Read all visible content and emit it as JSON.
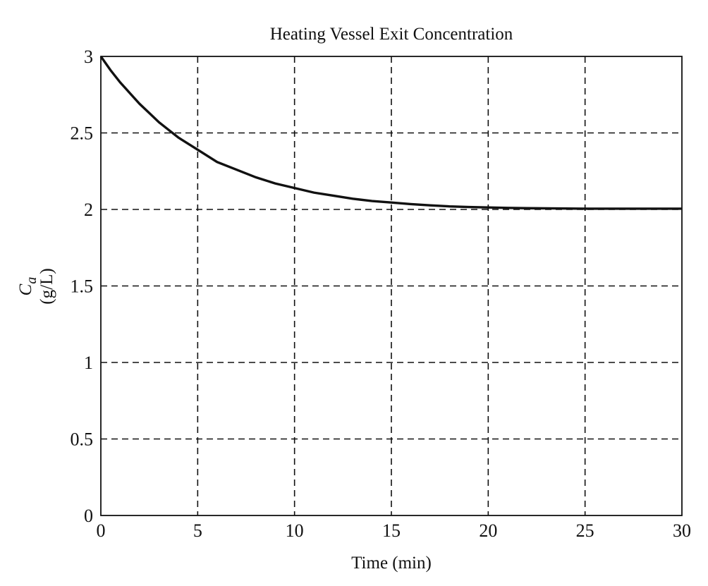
{
  "chart_data": {
    "type": "line",
    "title": "Heating Vessel Exit Concentration",
    "xlabel": "Time (min)",
    "ylabel_symbol": "C",
    "ylabel_subscript": "a",
    "ylabel_unit": "(g/L)",
    "xlim": [
      0,
      30
    ],
    "ylim": [
      0,
      3
    ],
    "xticks": [
      0,
      5,
      10,
      15,
      20,
      25,
      30
    ],
    "xtick_labels": [
      "0",
      "5",
      "10",
      "15",
      "20",
      "25",
      "30"
    ],
    "yticks": [
      0,
      0.5,
      1,
      1.5,
      2,
      2.5,
      3
    ],
    "ytick_labels": [
      "0",
      "0.5",
      "1",
      "1.5",
      "2",
      "2.5",
      "3"
    ],
    "grid": true,
    "series": [
      {
        "x": [
          0,
          0.5,
          1,
          1.5,
          2,
          2.5,
          3,
          3.5,
          4,
          4.5,
          5,
          6,
          7,
          8,
          9,
          10,
          11,
          12,
          13,
          14,
          15,
          16,
          17,
          18,
          19,
          20,
          21,
          22,
          23,
          24,
          25,
          26,
          27,
          28,
          29,
          30
        ],
        "y": [
          3.0,
          2.91,
          2.83,
          2.76,
          2.69,
          2.63,
          2.57,
          2.52,
          2.47,
          2.43,
          2.39,
          2.31,
          2.26,
          2.21,
          2.17,
          2.14,
          2.11,
          2.09,
          2.07,
          2.055,
          2.045,
          2.035,
          2.027,
          2.02,
          2.016,
          2.013,
          2.01,
          2.008,
          2.007,
          2.006,
          2.005,
          2.005,
          2.005,
          2.005,
          2.005,
          2.005
        ]
      }
    ]
  }
}
